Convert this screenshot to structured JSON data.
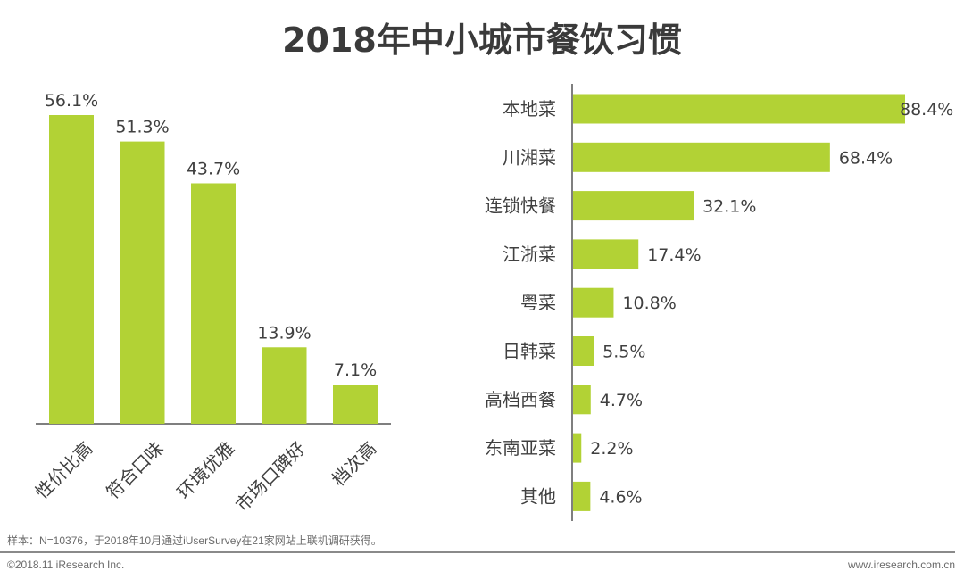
{
  "title": "2018年中小城市餐饮习惯",
  "colors": {
    "bar": "#b2d235",
    "text": "#404040",
    "axis": "#555555"
  },
  "chart_data": [
    {
      "type": "bar",
      "orientation": "vertical",
      "title": "",
      "categories": [
        "性价比高",
        "符合口味",
        "环境优雅",
        "市场口碑好",
        "档次高"
      ],
      "values": [
        56.1,
        51.3,
        43.7,
        13.9,
        7.1
      ],
      "labels": [
        "56.1%",
        "51.3%",
        "43.7%",
        "13.9%",
        "7.1%"
      ],
      "xlabel": "",
      "ylabel": "",
      "ylim": [
        0,
        60
      ],
      "grid": false,
      "tick_label_rotation": "-45deg"
    },
    {
      "type": "bar",
      "orientation": "horizontal",
      "title": "",
      "categories": [
        "本地菜",
        "川湘菜",
        "连锁快餐",
        "江浙菜",
        "粤菜",
        "日韩菜",
        "高档西餐",
        "东南亚菜",
        "其他"
      ],
      "values": [
        88.4,
        68.4,
        32.1,
        17.4,
        10.8,
        5.5,
        4.7,
        2.2,
        4.6
      ],
      "labels": [
        "88.4%",
        "68.4%",
        "32.1%",
        "17.4%",
        "10.8%",
        "5.5%",
        "4.7%",
        "2.2%",
        "4.6%"
      ],
      "xlabel": "",
      "ylabel": "",
      "xlim": [
        0,
        100
      ],
      "grid": false
    }
  ],
  "footer": {
    "note": "样本：N=10376，于2018年10月通过iUserSurvey在21家网站上联机调研获得。",
    "copyright": "©2018.11 iResearch Inc.",
    "website": "www.iresearch.com.cn"
  }
}
